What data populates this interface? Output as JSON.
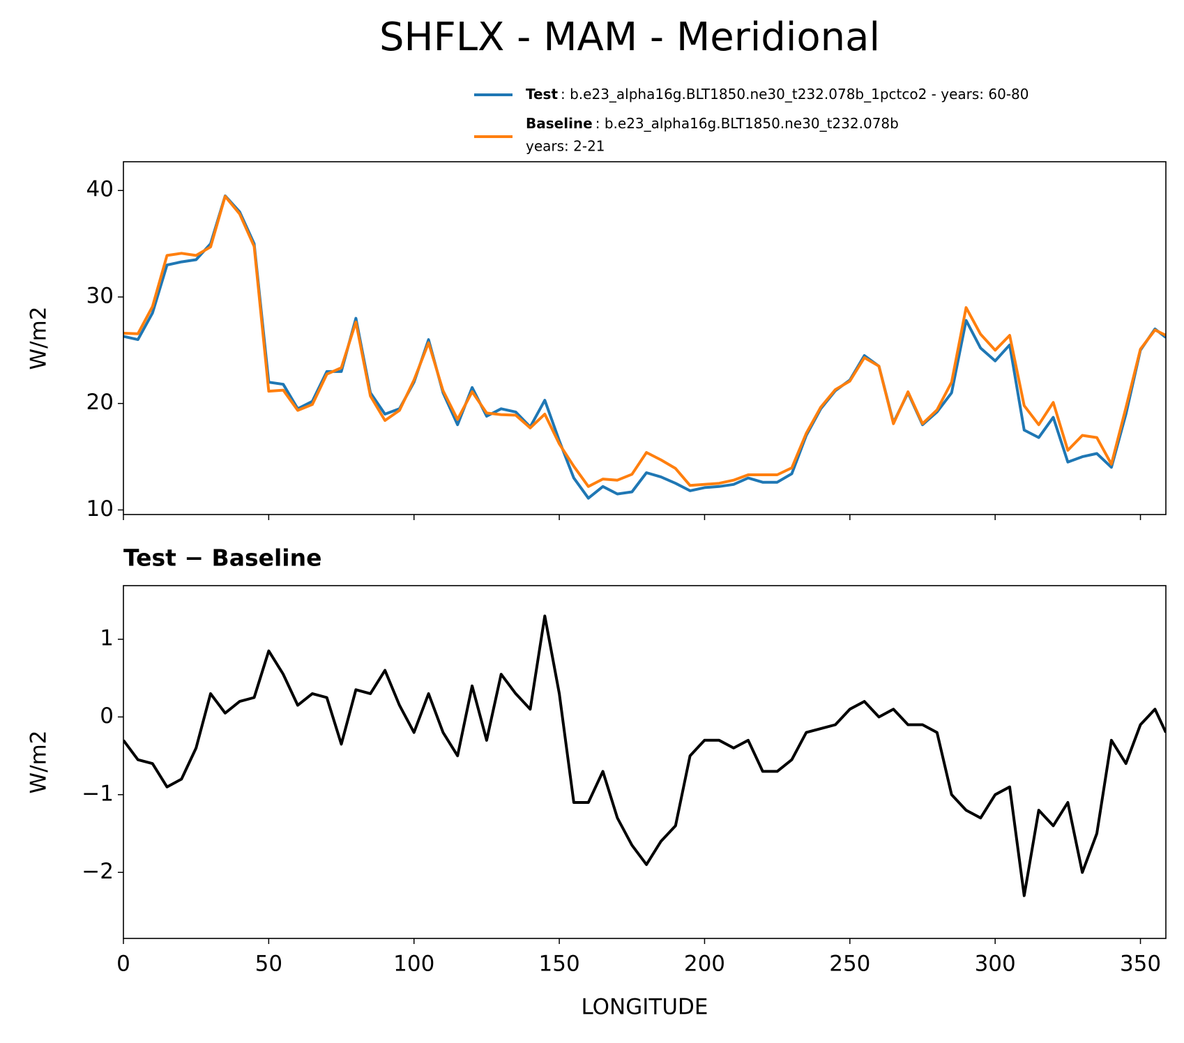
{
  "title": "SHFLX - MAM - Meridional",
  "chart_data": [
    {
      "type": "line",
      "x": [
        0,
        5,
        10,
        15,
        20,
        25,
        30,
        35,
        40,
        45,
        50,
        55,
        60,
        65,
        70,
        75,
        80,
        85,
        90,
        95,
        100,
        105,
        110,
        115,
        120,
        125,
        130,
        135,
        140,
        145,
        150,
        155,
        160,
        165,
        170,
        175,
        180,
        185,
        190,
        195,
        200,
        205,
        210,
        215,
        220,
        225,
        230,
        235,
        240,
        245,
        250,
        255,
        260,
        265,
        270,
        275,
        280,
        285,
        290,
        295,
        300,
        305,
        310,
        315,
        320,
        325,
        330,
        335,
        340,
        345,
        350,
        355,
        358.75
      ],
      "series": [
        {
          "name": "Test",
          "description": ": b.e23_alpha16g.BLT1850.ne30_t232.078b_1pctco2 - years: 60-80",
          "color": "#1f77b4",
          "values": [
            26.3,
            26.0,
            28.5,
            33,
            33.3,
            33.5,
            35,
            39.5,
            38,
            35,
            22,
            21.8,
            19.5,
            20.2,
            23,
            23,
            28,
            21,
            19,
            19.5,
            22,
            26,
            21,
            18,
            21.5,
            18.8,
            19.5,
            19.2,
            17.8,
            20.3,
            16.5,
            13,
            11.1,
            12.2,
            11.5,
            11.7,
            13.5,
            13.1,
            12.5,
            11.8,
            12.1,
            12.2,
            12.4,
            13,
            12.6,
            12.6,
            13.4,
            17,
            19.5,
            21.2,
            22.2,
            24.5,
            23.5,
            18.2,
            21,
            18,
            19.2,
            21,
            27.8,
            25.2,
            24,
            25.5,
            17.5,
            16.8,
            18.7,
            14.5,
            15,
            15.3,
            14,
            19,
            25,
            27,
            26.2
          ]
        },
        {
          "name": "Baseline",
          "description": ": b.e23_alpha16g.BLT1850.ne30_t232.078b",
          "description2": "years: 2-21",
          "color": "#ff7f0e",
          "values": [
            26.6,
            26.55,
            29.1,
            33.9,
            34.1,
            33.9,
            34.7,
            39.45,
            37.8,
            34.75,
            21.15,
            21.25,
            19.35,
            19.9,
            22.75,
            23.35,
            27.65,
            20.7,
            18.4,
            19.35,
            22.2,
            25.7,
            21.2,
            18.5,
            21.1,
            19.1,
            18.95,
            18.9,
            17.7,
            19,
            16.2,
            14.1,
            12.2,
            12.9,
            12.8,
            13.35,
            15.4,
            14.7,
            13.9,
            12.3,
            12.4,
            12.5,
            12.8,
            13.3,
            13.3,
            13.3,
            13.95,
            17.2,
            19.65,
            21.3,
            22.1,
            24.3,
            23.5,
            18.1,
            21.1,
            18.1,
            19.4,
            22,
            29,
            26.5,
            25,
            26.4,
            19.8,
            18,
            20.1,
            15.6,
            17,
            16.8,
            14.3,
            19.6,
            25.1,
            26.9,
            26.4
          ]
        }
      ],
      "ylabel": "W/m2",
      "xlim": [
        0,
        358.75
      ],
      "xticks": [
        0,
        50,
        100,
        150,
        200,
        250,
        300,
        350
      ],
      "xtick_labels": false,
      "ylim": [
        9.57,
        42.7
      ],
      "yticks": [
        10,
        20,
        30,
        40
      ]
    },
    {
      "type": "line",
      "title": "Test − Baseline",
      "x": [
        0,
        5,
        10,
        15,
        20,
        25,
        30,
        35,
        40,
        45,
        50,
        55,
        60,
        65,
        70,
        75,
        80,
        85,
        90,
        95,
        100,
        105,
        110,
        115,
        120,
        125,
        130,
        135,
        140,
        145,
        150,
        155,
        160,
        165,
        170,
        175,
        180,
        185,
        190,
        195,
        200,
        205,
        210,
        215,
        220,
        225,
        230,
        235,
        240,
        245,
        250,
        255,
        260,
        265,
        270,
        275,
        280,
        285,
        290,
        295,
        300,
        305,
        310,
        315,
        320,
        325,
        330,
        335,
        340,
        345,
        350,
        355,
        358.75
      ],
      "series": [
        {
          "color": "#000000",
          "values": [
            -0.3,
            -0.55,
            -0.6,
            -0.9,
            -0.8,
            -0.4,
            0.3,
            0.05,
            0.2,
            0.25,
            0.85,
            0.55,
            0.15,
            0.3,
            0.25,
            -0.35,
            0.35,
            0.3,
            0.6,
            0.15,
            -0.2,
            0.3,
            -0.2,
            -0.5,
            0.4,
            -0.3,
            0.55,
            0.3,
            0.1,
            1.3,
            0.3,
            -1.1,
            -1.1,
            -0.7,
            -1.3,
            -1.65,
            -1.9,
            -1.6,
            -1.4,
            -0.5,
            -0.3,
            -0.3,
            -0.4,
            -0.3,
            -0.7,
            -0.7,
            -0.55,
            -0.2,
            -0.15,
            -0.1,
            0.1,
            0.2,
            0,
            0.1,
            -0.1,
            -0.1,
            -0.2,
            -1.0,
            -1.2,
            -1.3,
            -1.0,
            -0.9,
            -2.3,
            -1.2,
            -1.4,
            -1.1,
            -2.0,
            -1.5,
            -0.3,
            -0.6,
            -0.1,
            0.1,
            -0.2
          ]
        }
      ],
      "xlabel": "LONGITUDE",
      "ylabel": "W/m2",
      "xlim": [
        0,
        358.75
      ],
      "xticks": [
        0,
        50,
        100,
        150,
        200,
        250,
        300,
        350
      ],
      "xtick_labels": true,
      "ylim": [
        -2.85,
        1.69
      ],
      "yticks": [
        {
          "value": -2,
          "label": "−2"
        },
        {
          "value": -1,
          "label": "−1"
        },
        0,
        1
      ]
    }
  ]
}
